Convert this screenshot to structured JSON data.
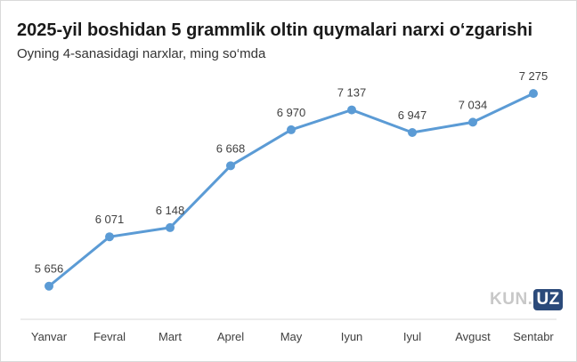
{
  "header": {
    "title": "2025-yil boshidan 5 grammlik oltin quymalari narxi o‘zgarishi",
    "subtitle": "Oyning 4-sanasidagi narxlar, ming so‘mda"
  },
  "logo": {
    "part1": "KUN.",
    "part2": "UZ"
  },
  "colors": {
    "line": "#5b9bd5",
    "text": "#404040"
  },
  "chart_data": {
    "type": "line",
    "title": "2025-yil boshidan 5 grammlik oltin quymalari narxi o‘zgarishi",
    "subtitle": "Oyning 4-sanasidagi narxlar, ming so‘mda",
    "categories": [
      "Yanvar",
      "Fevral",
      "Mart",
      "Aprel",
      "May",
      "Iyun",
      "Iyul",
      "Avgust",
      "Sentabr"
    ],
    "values": [
      5656,
      6071,
      6148,
      6668,
      6970,
      7137,
      6947,
      7034,
      7275
    ],
    "labels": [
      "5 656",
      "6 071",
      "6 148",
      "6 668",
      "6 970",
      "7 137",
      "6 947",
      "7 034",
      "7 275"
    ],
    "xlabel": "",
    "ylabel": "",
    "ylim": [
      5400,
      7500
    ],
    "grid": false,
    "legend": "none",
    "markers": true
  }
}
